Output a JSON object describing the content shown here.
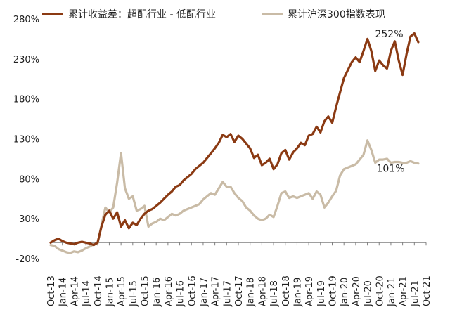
{
  "chart_data": {
    "type": "line",
    "title": "",
    "xlabel": "",
    "ylabel": "",
    "ylim": [
      -20,
      280
    ],
    "y_ticks": [
      -20,
      30,
      80,
      130,
      180,
      230,
      280
    ],
    "y_tick_labels": [
      "-20%",
      "30%",
      "80%",
      "130%",
      "180%",
      "230%",
      "280%"
    ],
    "x_tick_labels": [
      "Oct-13",
      "Jan-14",
      "Apr-14",
      "Jul-14",
      "Oct-14",
      "Jan-15",
      "Apr-15",
      "Jul-15",
      "Oct-15",
      "Jan-16",
      "Apr-16",
      "Jul-16",
      "Oct-16",
      "Jan-17",
      "Apr-17",
      "Jul-17",
      "Oct-17",
      "Jan-18",
      "Apr-18",
      "Jul-18",
      "Oct-18",
      "Jan-19",
      "Apr-19",
      "Jul-19",
      "Oct-19",
      "Jan-20",
      "Apr-20",
      "Jul-20",
      "Oct-20",
      "Jan-21",
      "Apr-21",
      "Jul-21",
      "Oct-21"
    ],
    "x_unit_note": "x values are months since Oct-13 on the date axis",
    "grid": false,
    "legend_position": "top",
    "series": [
      {
        "name": "累计收益差：超配行业 - 低配行业",
        "color": "#8B3A13",
        "points": [
          [
            0,
            0
          ],
          [
            1,
            3
          ],
          [
            2,
            5
          ],
          [
            3,
            2
          ],
          [
            4,
            0
          ],
          [
            5,
            -1
          ],
          [
            6,
            -2
          ],
          [
            7,
            0
          ],
          [
            8,
            1
          ],
          [
            9,
            0
          ],
          [
            10,
            -1
          ],
          [
            11,
            -3
          ],
          [
            12,
            0
          ],
          [
            13,
            20
          ],
          [
            14,
            35
          ],
          [
            15,
            40
          ],
          [
            16,
            30
          ],
          [
            17,
            38
          ],
          [
            18,
            20
          ],
          [
            19,
            28
          ],
          [
            20,
            18
          ],
          [
            21,
            25
          ],
          [
            22,
            22
          ],
          [
            23,
            30
          ],
          [
            24,
            36
          ],
          [
            25,
            40
          ],
          [
            26,
            42
          ],
          [
            27,
            46
          ],
          [
            28,
            50
          ],
          [
            29,
            55
          ],
          [
            30,
            60
          ],
          [
            31,
            64
          ],
          [
            32,
            70
          ],
          [
            33,
            72
          ],
          [
            34,
            78
          ],
          [
            35,
            82
          ],
          [
            36,
            86
          ],
          [
            37,
            92
          ],
          [
            38,
            96
          ],
          [
            39,
            100
          ],
          [
            40,
            106
          ],
          [
            41,
            112
          ],
          [
            42,
            118
          ],
          [
            43,
            125
          ],
          [
            44,
            135
          ],
          [
            45,
            132
          ],
          [
            46,
            136
          ],
          [
            47,
            126
          ],
          [
            48,
            134
          ],
          [
            49,
            130
          ],
          [
            50,
            124
          ],
          [
            51,
            118
          ],
          [
            52,
            106
          ],
          [
            53,
            110
          ],
          [
            54,
            97
          ],
          [
            55,
            100
          ],
          [
            56,
            105
          ],
          [
            57,
            92
          ],
          [
            58,
            98
          ],
          [
            59,
            112
          ],
          [
            60,
            116
          ],
          [
            61,
            104
          ],
          [
            62,
            113
          ],
          [
            63,
            118
          ],
          [
            64,
            125
          ],
          [
            65,
            122
          ],
          [
            66,
            134
          ],
          [
            67,
            136
          ],
          [
            68,
            145
          ],
          [
            69,
            138
          ],
          [
            70,
            152
          ],
          [
            71,
            158
          ],
          [
            72,
            150
          ],
          [
            73,
            170
          ],
          [
            74,
            188
          ],
          [
            75,
            206
          ],
          [
            76,
            216
          ],
          [
            77,
            226
          ],
          [
            78,
            232
          ],
          [
            79,
            226
          ],
          [
            80,
            240
          ],
          [
            81,
            255
          ],
          [
            82,
            240
          ],
          [
            83,
            215
          ],
          [
            84,
            228
          ],
          [
            85,
            222
          ],
          [
            86,
            218
          ],
          [
            87,
            240
          ],
          [
            88,
            252
          ],
          [
            89,
            228
          ],
          [
            90,
            210
          ],
          [
            91,
            236
          ],
          [
            92,
            258
          ],
          [
            93,
            262
          ],
          [
            94,
            251
          ]
        ]
      },
      {
        "name": "累计沪深300指数表现",
        "color": "#C9BBA6",
        "points": [
          [
            0,
            -3
          ],
          [
            1,
            -4
          ],
          [
            2,
            -8
          ],
          [
            3,
            -10
          ],
          [
            4,
            -12
          ],
          [
            5,
            -13
          ],
          [
            6,
            -11
          ],
          [
            7,
            -12
          ],
          [
            8,
            -10
          ],
          [
            9,
            -7
          ],
          [
            10,
            -5
          ],
          [
            11,
            -2
          ],
          [
            12,
            -1
          ],
          [
            13,
            22
          ],
          [
            14,
            44
          ],
          [
            15,
            38
          ],
          [
            16,
            44
          ],
          [
            17,
            75
          ],
          [
            18,
            112
          ],
          [
            19,
            68
          ],
          [
            20,
            55
          ],
          [
            21,
            58
          ],
          [
            22,
            40
          ],
          [
            23,
            42
          ],
          [
            24,
            46
          ],
          [
            25,
            20
          ],
          [
            26,
            24
          ],
          [
            27,
            26
          ],
          [
            28,
            30
          ],
          [
            29,
            28
          ],
          [
            30,
            32
          ],
          [
            31,
            36
          ],
          [
            32,
            34
          ],
          [
            33,
            36
          ],
          [
            34,
            40
          ],
          [
            35,
            42
          ],
          [
            36,
            44
          ],
          [
            37,
            46
          ],
          [
            38,
            48
          ],
          [
            39,
            54
          ],
          [
            40,
            58
          ],
          [
            41,
            62
          ],
          [
            42,
            60
          ],
          [
            43,
            68
          ],
          [
            44,
            76
          ],
          [
            45,
            70
          ],
          [
            46,
            70
          ],
          [
            47,
            62
          ],
          [
            48,
            56
          ],
          [
            49,
            52
          ],
          [
            50,
            44
          ],
          [
            51,
            40
          ],
          [
            52,
            34
          ],
          [
            53,
            30
          ],
          [
            54,
            28
          ],
          [
            55,
            30
          ],
          [
            56,
            35
          ],
          [
            57,
            32
          ],
          [
            58,
            46
          ],
          [
            59,
            62
          ],
          [
            60,
            64
          ],
          [
            61,
            56
          ],
          [
            62,
            58
          ],
          [
            63,
            56
          ],
          [
            64,
            58
          ],
          [
            65,
            60
          ],
          [
            66,
            62
          ],
          [
            67,
            55
          ],
          [
            68,
            64
          ],
          [
            69,
            60
          ],
          [
            70,
            44
          ],
          [
            71,
            50
          ],
          [
            72,
            58
          ],
          [
            73,
            65
          ],
          [
            74,
            84
          ],
          [
            75,
            92
          ],
          [
            76,
            94
          ],
          [
            77,
            96
          ],
          [
            78,
            98
          ],
          [
            79,
            104
          ],
          [
            80,
            110
          ],
          [
            81,
            128
          ],
          [
            82,
            116
          ],
          [
            83,
            100
          ],
          [
            84,
            104
          ],
          [
            85,
            104
          ],
          [
            86,
            105
          ],
          [
            87,
            100
          ],
          [
            88,
            101
          ],
          [
            89,
            101
          ],
          [
            90,
            100
          ],
          [
            91,
            100
          ],
          [
            92,
            102
          ],
          [
            93,
            100
          ],
          [
            94,
            99
          ]
        ]
      }
    ],
    "annotations": [
      {
        "text": "252%",
        "series": 0,
        "x": 88,
        "y": 252
      },
      {
        "text": "101%",
        "series": 1,
        "x": 88,
        "y": 101
      }
    ]
  }
}
